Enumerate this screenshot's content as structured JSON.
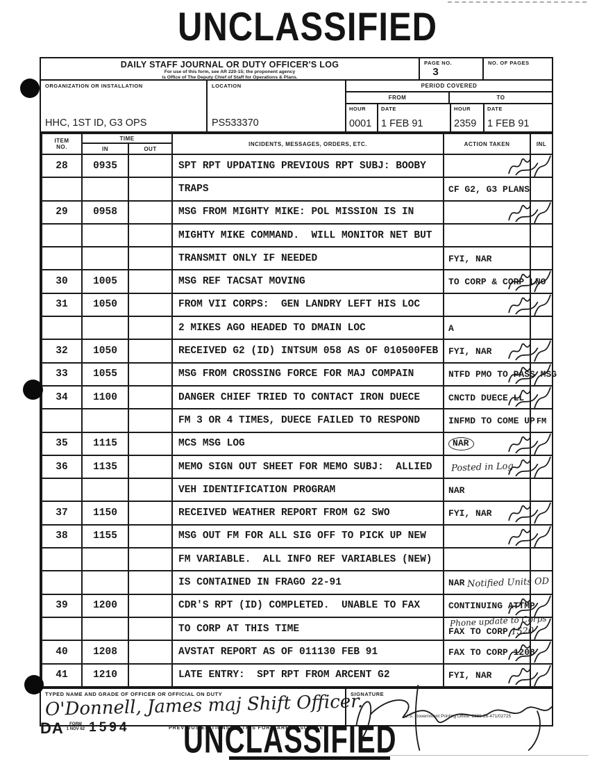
{
  "stamps": {
    "top": "UNCLASSIFIED",
    "bottom": "UNCLASSIFIED"
  },
  "colors": {
    "ink": "#1a1a1a",
    "paper": "#ffffff"
  },
  "form_header": {
    "title": "DAILY STAFF JOURNAL OR DUTY OFFICER'S LOG",
    "subtitle_line1": "For use of this form, see AR 220-15; the proponent agency",
    "subtitle_line2": "is Office of The Deputy Chief of Staff for Operations & Plans.",
    "page_no_label": "PAGE NO.",
    "page_no": "3",
    "no_of_pages_label": "NO. OF PAGES",
    "no_of_pages": "",
    "org_label": "ORGANIZATION OR INSTALLATION",
    "org_value": "HHC, 1ST ID, G3 OPS",
    "location_label": "LOCATION",
    "location_value": "PS533370",
    "period_label": "PERIOD COVERED",
    "from_label": "FROM",
    "to_label": "TO",
    "hour_label": "HOUR",
    "date_label": "DATE",
    "from_hour": "0001",
    "from_date": "1 FEB 91",
    "to_hour": "2359",
    "to_date": "1 FEB 91"
  },
  "table": {
    "headers": {
      "item_l1": "ITEM",
      "item_l2": "NO.",
      "time": "TIME",
      "in": "IN",
      "out": "OUT",
      "incidents": "INCIDENTS, MESSAGES, ORDERS, ETC.",
      "action": "ACTION TAKEN",
      "inl": "INL"
    },
    "rows": [
      {
        "item": "28",
        "in": "0935",
        "incident": "SPT RPT UPDATING PREVIOUS RPT SUBJ: BOOBY",
        "sig": true
      },
      {
        "incident": "TRAPS",
        "action": "CF G2, G3 PLANS"
      },
      {
        "item": "29",
        "in": "0958",
        "incident": "MSG FROM MIGHTY MIKE: POL MISSION IS IN",
        "sig": true
      },
      {
        "incident": "MIGHTY MIKE COMMAND.  WILL MONITOR NET BUT"
      },
      {
        "incident": "TRANSMIT ONLY IF NEEDED",
        "action": "FYI, NAR"
      },
      {
        "item": "30",
        "in": "1005",
        "incident": "MSG REF TACSAT MOVING",
        "action": "TO CORP & CORP LNO",
        "sig": true
      },
      {
        "item": "31",
        "in": "1050",
        "incident": "FROM VII CORPS:  GEN LANDRY LEFT HIS LOC",
        "sig": true
      },
      {
        "incident": "2 MIKES AGO HEADED TO DMAIN LOC",
        "action": "A"
      },
      {
        "item": "32",
        "in": "1050",
        "incident": "RECEIVED G2 (ID) INTSUM 058 AS OF 010500FEB",
        "action": "FYI, NAR",
        "sig": true
      },
      {
        "item": "33",
        "in": "1055",
        "incident": "MSG FROM CROSSING FORCE FOR MAJ COMPAIN",
        "action": "NTFD PMO TO PASS MSG",
        "sig": true
      },
      {
        "item": "34",
        "in": "1100",
        "incident": "DANGER CHIEF TRIED TO CONTACT IRON DUECE",
        "action": "CNCTD DUECE LL",
        "sig": true
      },
      {
        "incident": "FM 3 OR 4 TIMES, DUECE FAILED TO RESPOND",
        "action": "INFMD TO COME UP",
        "inl": "FM"
      },
      {
        "item": "35",
        "in": "1115",
        "incident": "MCS MSG LOG",
        "action": "NAR",
        "circled": true,
        "sig": true
      },
      {
        "item": "36",
        "in": "1135",
        "incident": "MEMO SIGN OUT SHEET FOR MEMO SUBJ:  ALLIED",
        "hand": "Posted in Log",
        "sig": true
      },
      {
        "incident": "VEH IDENTIFICATION PROGRAM",
        "action": "NAR"
      },
      {
        "item": "37",
        "in": "1150",
        "incident": "RECEIVED WEATHER REPORT FROM G2 SWO",
        "action": "FYI, NAR",
        "sig": true
      },
      {
        "item": "38",
        "in": "1155",
        "incident": "MSG OUT FM FOR ALL SIG OFF TO PICK UP NEW",
        "sig": true
      },
      {
        "incident": "FM VARIABLE.  ALL INFO REF VARIABLES (NEW)"
      },
      {
        "incident": "IS CONTAINED IN FRAGO 22-91",
        "action": "NAR",
        "hand": "Notified Units OD"
      },
      {
        "item": "39",
        "in": "1200",
        "incident": "CDR'S RPT (ID) COMPLETED.  UNABLE TO FAX",
        "action": "CONTINUING ATTMP",
        "sig": true
      },
      {
        "incident": "TO CORP AT THIS TIME",
        "hand_above": "Phone update to Corps",
        "action": "FAX TO CORP",
        "hand": "1520",
        "sig": true
      },
      {
        "item": "40",
        "in": "1208",
        "incident": "AVSTAT REPORT AS OF 011130 FEB 91",
        "action": "FAX TO CORP 1208",
        "sig": true
      },
      {
        "item": "41",
        "in": "1210",
        "incident": "LATE ENTRY:  SPT RPT FROM ARCENT G2",
        "action": "FYI, NAR",
        "sig": true
      }
    ]
  },
  "footer": {
    "typed_name_label": "TYPED NAME AND GRADE OF OFFICER OR OFFICIAL ON DUTY",
    "signature_label": "SIGNATURE",
    "typed_name_value": "O'Donnell, James maj Shift Officer.",
    "da_prefix": "DA",
    "form_word": "FORM",
    "form_date": "1 NOV 62",
    "form_number": "1594",
    "obsolete_note": "PREVIOUS EDITIONS OF THIS FORM ARE OBSOLETE",
    "gpo_note": "U.S. Government Printing Office: 1990-26-471/02725"
  }
}
